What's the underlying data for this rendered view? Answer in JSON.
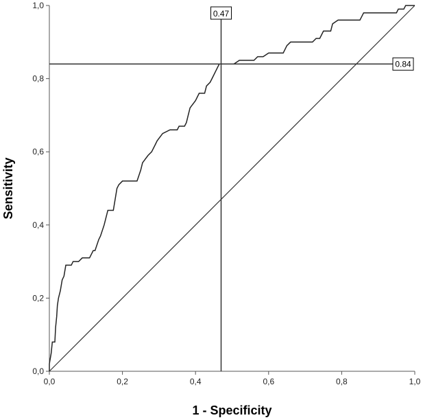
{
  "chart_data": {
    "type": "line",
    "xlabel": "1 - Specificity",
    "ylabel": "Sensitivity",
    "xlim": [
      0,
      1
    ],
    "ylim": [
      0,
      1
    ],
    "x_ticks": [
      "0,0",
      "0,2",
      "0,4",
      "0,6",
      "0,8",
      "1,0"
    ],
    "y_ticks": [
      "0,0",
      "0,2",
      "0,4",
      "0,6",
      "0,8",
      "1,0"
    ],
    "grid": false,
    "series": [
      {
        "points": [
          [
            0.0,
            0.0
          ],
          [
            0.0,
            0.02
          ],
          [
            0.005,
            0.05
          ],
          [
            0.008,
            0.08
          ],
          [
            0.015,
            0.08
          ],
          [
            0.017,
            0.12
          ],
          [
            0.02,
            0.15
          ],
          [
            0.022,
            0.18
          ],
          [
            0.025,
            0.2
          ],
          [
            0.03,
            0.22
          ],
          [
            0.035,
            0.25
          ],
          [
            0.04,
            0.26
          ],
          [
            0.045,
            0.29
          ],
          [
            0.06,
            0.29
          ],
          [
            0.065,
            0.3
          ],
          [
            0.08,
            0.3
          ],
          [
            0.09,
            0.31
          ],
          [
            0.11,
            0.31
          ],
          [
            0.115,
            0.32
          ],
          [
            0.12,
            0.33
          ],
          [
            0.125,
            0.33
          ],
          [
            0.135,
            0.36
          ],
          [
            0.14,
            0.37
          ],
          [
            0.15,
            0.4
          ],
          [
            0.16,
            0.44
          ],
          [
            0.175,
            0.44
          ],
          [
            0.185,
            0.5
          ],
          [
            0.19,
            0.51
          ],
          [
            0.2,
            0.52
          ],
          [
            0.24,
            0.52
          ],
          [
            0.25,
            0.55
          ],
          [
            0.255,
            0.57
          ],
          [
            0.27,
            0.59
          ],
          [
            0.28,
            0.6
          ],
          [
            0.29,
            0.62
          ],
          [
            0.295,
            0.63
          ],
          [
            0.31,
            0.65
          ],
          [
            0.33,
            0.66
          ],
          [
            0.35,
            0.66
          ],
          [
            0.355,
            0.67
          ],
          [
            0.37,
            0.67
          ],
          [
            0.375,
            0.68
          ],
          [
            0.38,
            0.7
          ],
          [
            0.385,
            0.72
          ],
          [
            0.4,
            0.74
          ],
          [
            0.41,
            0.76
          ],
          [
            0.425,
            0.76
          ],
          [
            0.43,
            0.78
          ],
          [
            0.44,
            0.79
          ],
          [
            0.445,
            0.8
          ],
          [
            0.455,
            0.82
          ],
          [
            0.465,
            0.84
          ],
          [
            0.505,
            0.84
          ],
          [
            0.52,
            0.85
          ],
          [
            0.56,
            0.85
          ],
          [
            0.57,
            0.86
          ],
          [
            0.585,
            0.86
          ],
          [
            0.6,
            0.87
          ],
          [
            0.64,
            0.87
          ],
          [
            0.65,
            0.89
          ],
          [
            0.66,
            0.9
          ],
          [
            0.72,
            0.9
          ],
          [
            0.73,
            0.91
          ],
          [
            0.74,
            0.91
          ],
          [
            0.75,
            0.93
          ],
          [
            0.77,
            0.93
          ],
          [
            0.775,
            0.95
          ],
          [
            0.79,
            0.96
          ],
          [
            0.85,
            0.96
          ],
          [
            0.86,
            0.98
          ],
          [
            0.95,
            0.98
          ],
          [
            0.955,
            0.99
          ],
          [
            0.97,
            0.99
          ],
          [
            0.975,
            1.0
          ],
          [
            1.0,
            1.0
          ]
        ]
      }
    ],
    "reference_line": {
      "points": [
        [
          0,
          0
        ],
        [
          1,
          1
        ]
      ]
    },
    "cutoff": {
      "x": 0.47,
      "y": 0.84,
      "x_label": "0.47",
      "y_label": "0.84"
    }
  }
}
